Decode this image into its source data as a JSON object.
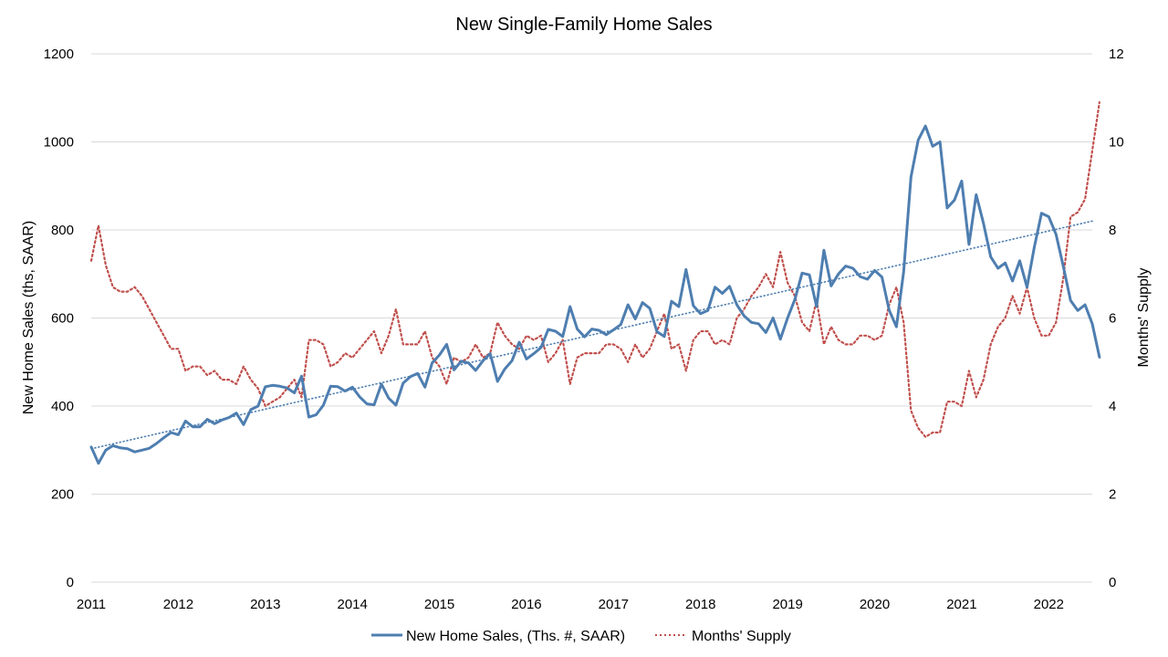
{
  "chart_data": {
    "type": "line",
    "title": "New Single-Family Home Sales",
    "ylabel": "New Home Sales (ths, SAAR)",
    "y2label": "Months' Supply",
    "ylim": [
      0,
      1200
    ],
    "y2lim": [
      0,
      12
    ],
    "yticks": [
      0,
      200,
      400,
      600,
      800,
      1000,
      1200
    ],
    "y2ticks": [
      0,
      2,
      4,
      6,
      8,
      10,
      12
    ],
    "xlim": [
      2011,
      2022.5
    ],
    "xticks": [
      2011,
      2012,
      2013,
      2014,
      2015,
      2016,
      2017,
      2018,
      2019,
      2020,
      2021,
      2022
    ],
    "grid": true,
    "legend_position": "bottom",
    "colors": {
      "sales": "#4E7EB0",
      "supply": "#C0504D",
      "trend": "#4E7EB0",
      "grid": "#D9D9D9"
    },
    "series": [
      {
        "name": "New Home Sales, (Ths. #, SAAR)",
        "axis": "left",
        "style": "solid",
        "x_start": "2011-01",
        "interval": "monthly",
        "values": [
          307,
          270,
          300,
          310,
          305,
          303,
          296,
          300,
          304,
          315,
          328,
          340,
          335,
          366,
          353,
          353,
          370,
          360,
          368,
          374,
          384,
          358,
          392,
          400,
          444,
          447,
          445,
          441,
          430,
          468,
          375,
          380,
          402,
          445,
          444,
          434,
          443,
          421,
          405,
          403,
          450,
          418,
          402,
          452,
          467,
          474,
          443,
          498,
          516,
          540,
          482,
          502,
          498,
          481,
          503,
          519,
          456,
          484,
          503,
          545,
          507,
          519,
          533,
          574,
          570,
          558,
          626,
          575,
          557,
          575,
          572,
          562,
          573,
          585,
          630,
          598,
          635,
          622,
          569,
          558,
          638,
          626,
          710,
          628,
          610,
          617,
          670,
          656,
          672,
          630,
          605,
          590,
          587,
          567,
          600,
          552,
          600,
          642,
          702,
          698,
          626,
          754,
          673,
          700,
          718,
          713,
          694,
          688,
          708,
          693,
          618,
          580,
          705,
          920,
          1004,
          1036,
          990,
          1000,
          850,
          868,
          911,
          767,
          880,
          815,
          739,
          713,
          725,
          684,
          730,
          670,
          760,
          838,
          830,
          790,
          718,
          640,
          617,
          630,
          587,
          511
        ]
      },
      {
        "name": "Months' Supply",
        "axis": "right",
        "style": "dotted",
        "x_start": "2011-01",
        "interval": "monthly",
        "values": [
          7.3,
          8.1,
          7.2,
          6.7,
          6.6,
          6.6,
          6.7,
          6.5,
          6.2,
          5.9,
          5.6,
          5.3,
          5.3,
          4.8,
          4.9,
          4.9,
          4.7,
          4.8,
          4.6,
          4.6,
          4.5,
          4.9,
          4.6,
          4.4,
          4.0,
          4.1,
          4.2,
          4.4,
          4.6,
          4.2,
          5.5,
          5.5,
          5.4,
          4.9,
          5.0,
          5.2,
          5.1,
          5.3,
          5.5,
          5.7,
          5.2,
          5.6,
          6.2,
          5.4,
          5.4,
          5.4,
          5.7,
          5.1,
          4.9,
          4.5,
          5.1,
          5.0,
          5.1,
          5.4,
          5.1,
          5.2,
          5.9,
          5.6,
          5.4,
          5.3,
          5.6,
          5.5,
          5.6,
          5.0,
          5.2,
          5.5,
          4.5,
          5.1,
          5.2,
          5.2,
          5.2,
          5.4,
          5.4,
          5.3,
          5.0,
          5.4,
          5.1,
          5.3,
          5.7,
          6.1,
          5.3,
          5.4,
          4.8,
          5.5,
          5.7,
          5.7,
          5.4,
          5.5,
          5.4,
          6.0,
          6.2,
          6.5,
          6.7,
          7.0,
          6.7,
          7.5,
          6.8,
          6.5,
          5.9,
          5.7,
          6.4,
          5.4,
          5.8,
          5.5,
          5.4,
          5.4,
          5.6,
          5.6,
          5.5,
          5.6,
          6.3,
          6.7,
          5.9,
          3.9,
          3.5,
          3.3,
          3.4,
          3.4,
          4.1,
          4.1,
          4.0,
          4.8,
          4.2,
          4.6,
          5.4,
          5.8,
          6.0,
          6.5,
          6.1,
          6.7,
          6.0,
          5.6,
          5.6,
          5.9,
          6.9,
          8.3,
          8.4,
          8.7,
          9.8,
          10.9
        ]
      },
      {
        "name": "",
        "kind": "linear-trend",
        "axis": "left",
        "style": "dotted",
        "x": [
          "2011-01",
          "2022-07"
        ],
        "values": [
          303,
          820
        ]
      }
    ]
  }
}
